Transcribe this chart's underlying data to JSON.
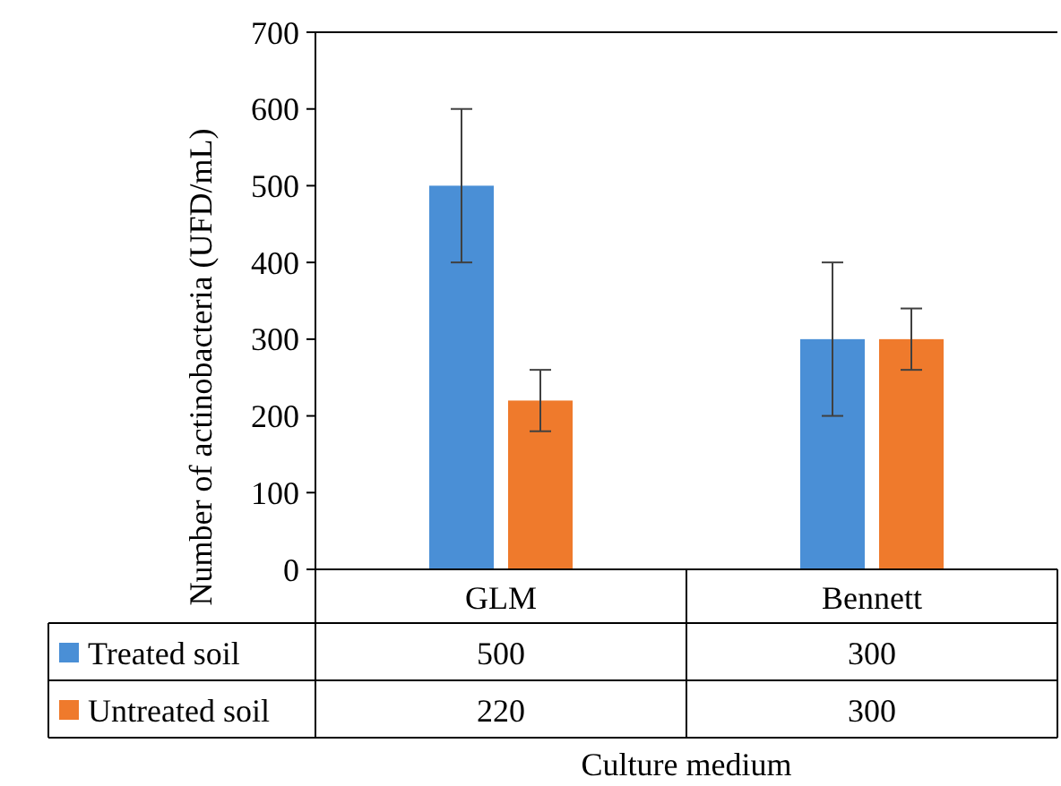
{
  "chart_data": {
    "type": "bar",
    "xlabel": "Culture medium",
    "ylabel": "Number of actinobacteria (UFD/mL)",
    "categories": [
      "GLM",
      "Bennett"
    ],
    "series": [
      {
        "name": "Treated soil",
        "color": "#4a8fd6",
        "values": [
          500,
          300
        ],
        "errors": [
          100,
          100
        ]
      },
      {
        "name": "Untreated soil",
        "color": "#ef7a2c",
        "values": [
          220,
          300
        ],
        "errors": [
          40,
          40
        ]
      }
    ],
    "ylim": [
      0,
      700
    ],
    "yticks": [
      0,
      100,
      200,
      300,
      400,
      500,
      600,
      700
    ],
    "grid": false,
    "legend": "bottom",
    "data_labels": true
  }
}
